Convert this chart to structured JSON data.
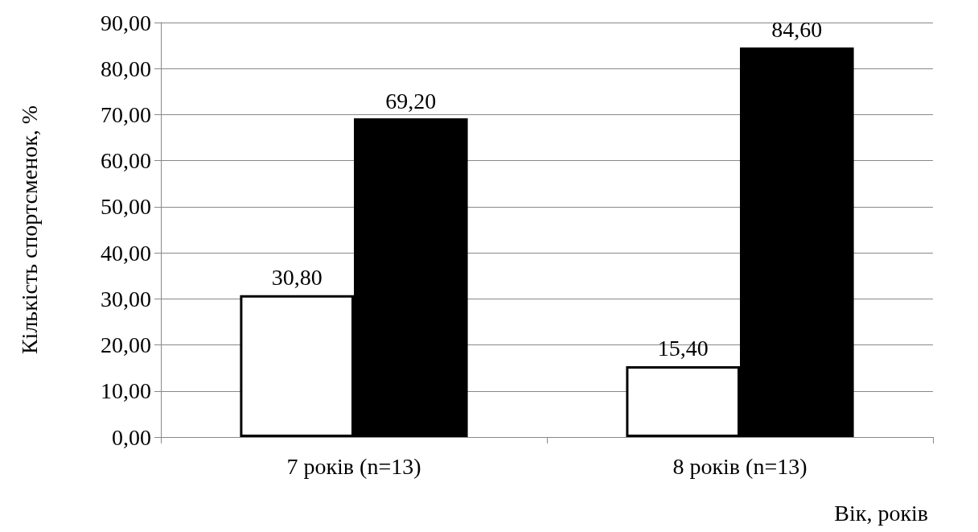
{
  "chart_data": {
    "type": "bar",
    "ylabel": "Кількість спортсменок, %",
    "xlabel": "Вік, років",
    "categories": [
      "7 років (n=13)",
      "8 років (n=13)"
    ],
    "series": [
      {
        "color": "#ffffff",
        "values": [
          30.8,
          15.4
        ],
        "value_labels": [
          "30,80",
          "15,40"
        ]
      },
      {
        "color": "#000000",
        "values": [
          69.2,
          84.6
        ],
        "value_labels": [
          "69,20",
          "84,60"
        ]
      }
    ],
    "ylim": [
      0,
      90
    ],
    "yticks": [
      {
        "value": 0,
        "label": "0,00"
      },
      {
        "value": 10,
        "label": "10,00"
      },
      {
        "value": 20,
        "label": "20,00"
      },
      {
        "value": 30,
        "label": "30,00"
      },
      {
        "value": 40,
        "label": "40,00"
      },
      {
        "value": 50,
        "label": "50,00"
      },
      {
        "value": 60,
        "label": "60,00"
      },
      {
        "value": 70,
        "label": "70,00"
      },
      {
        "value": 80,
        "label": "80,00"
      },
      {
        "value": 90,
        "label": "90,00"
      }
    ],
    "grid": "y"
  }
}
